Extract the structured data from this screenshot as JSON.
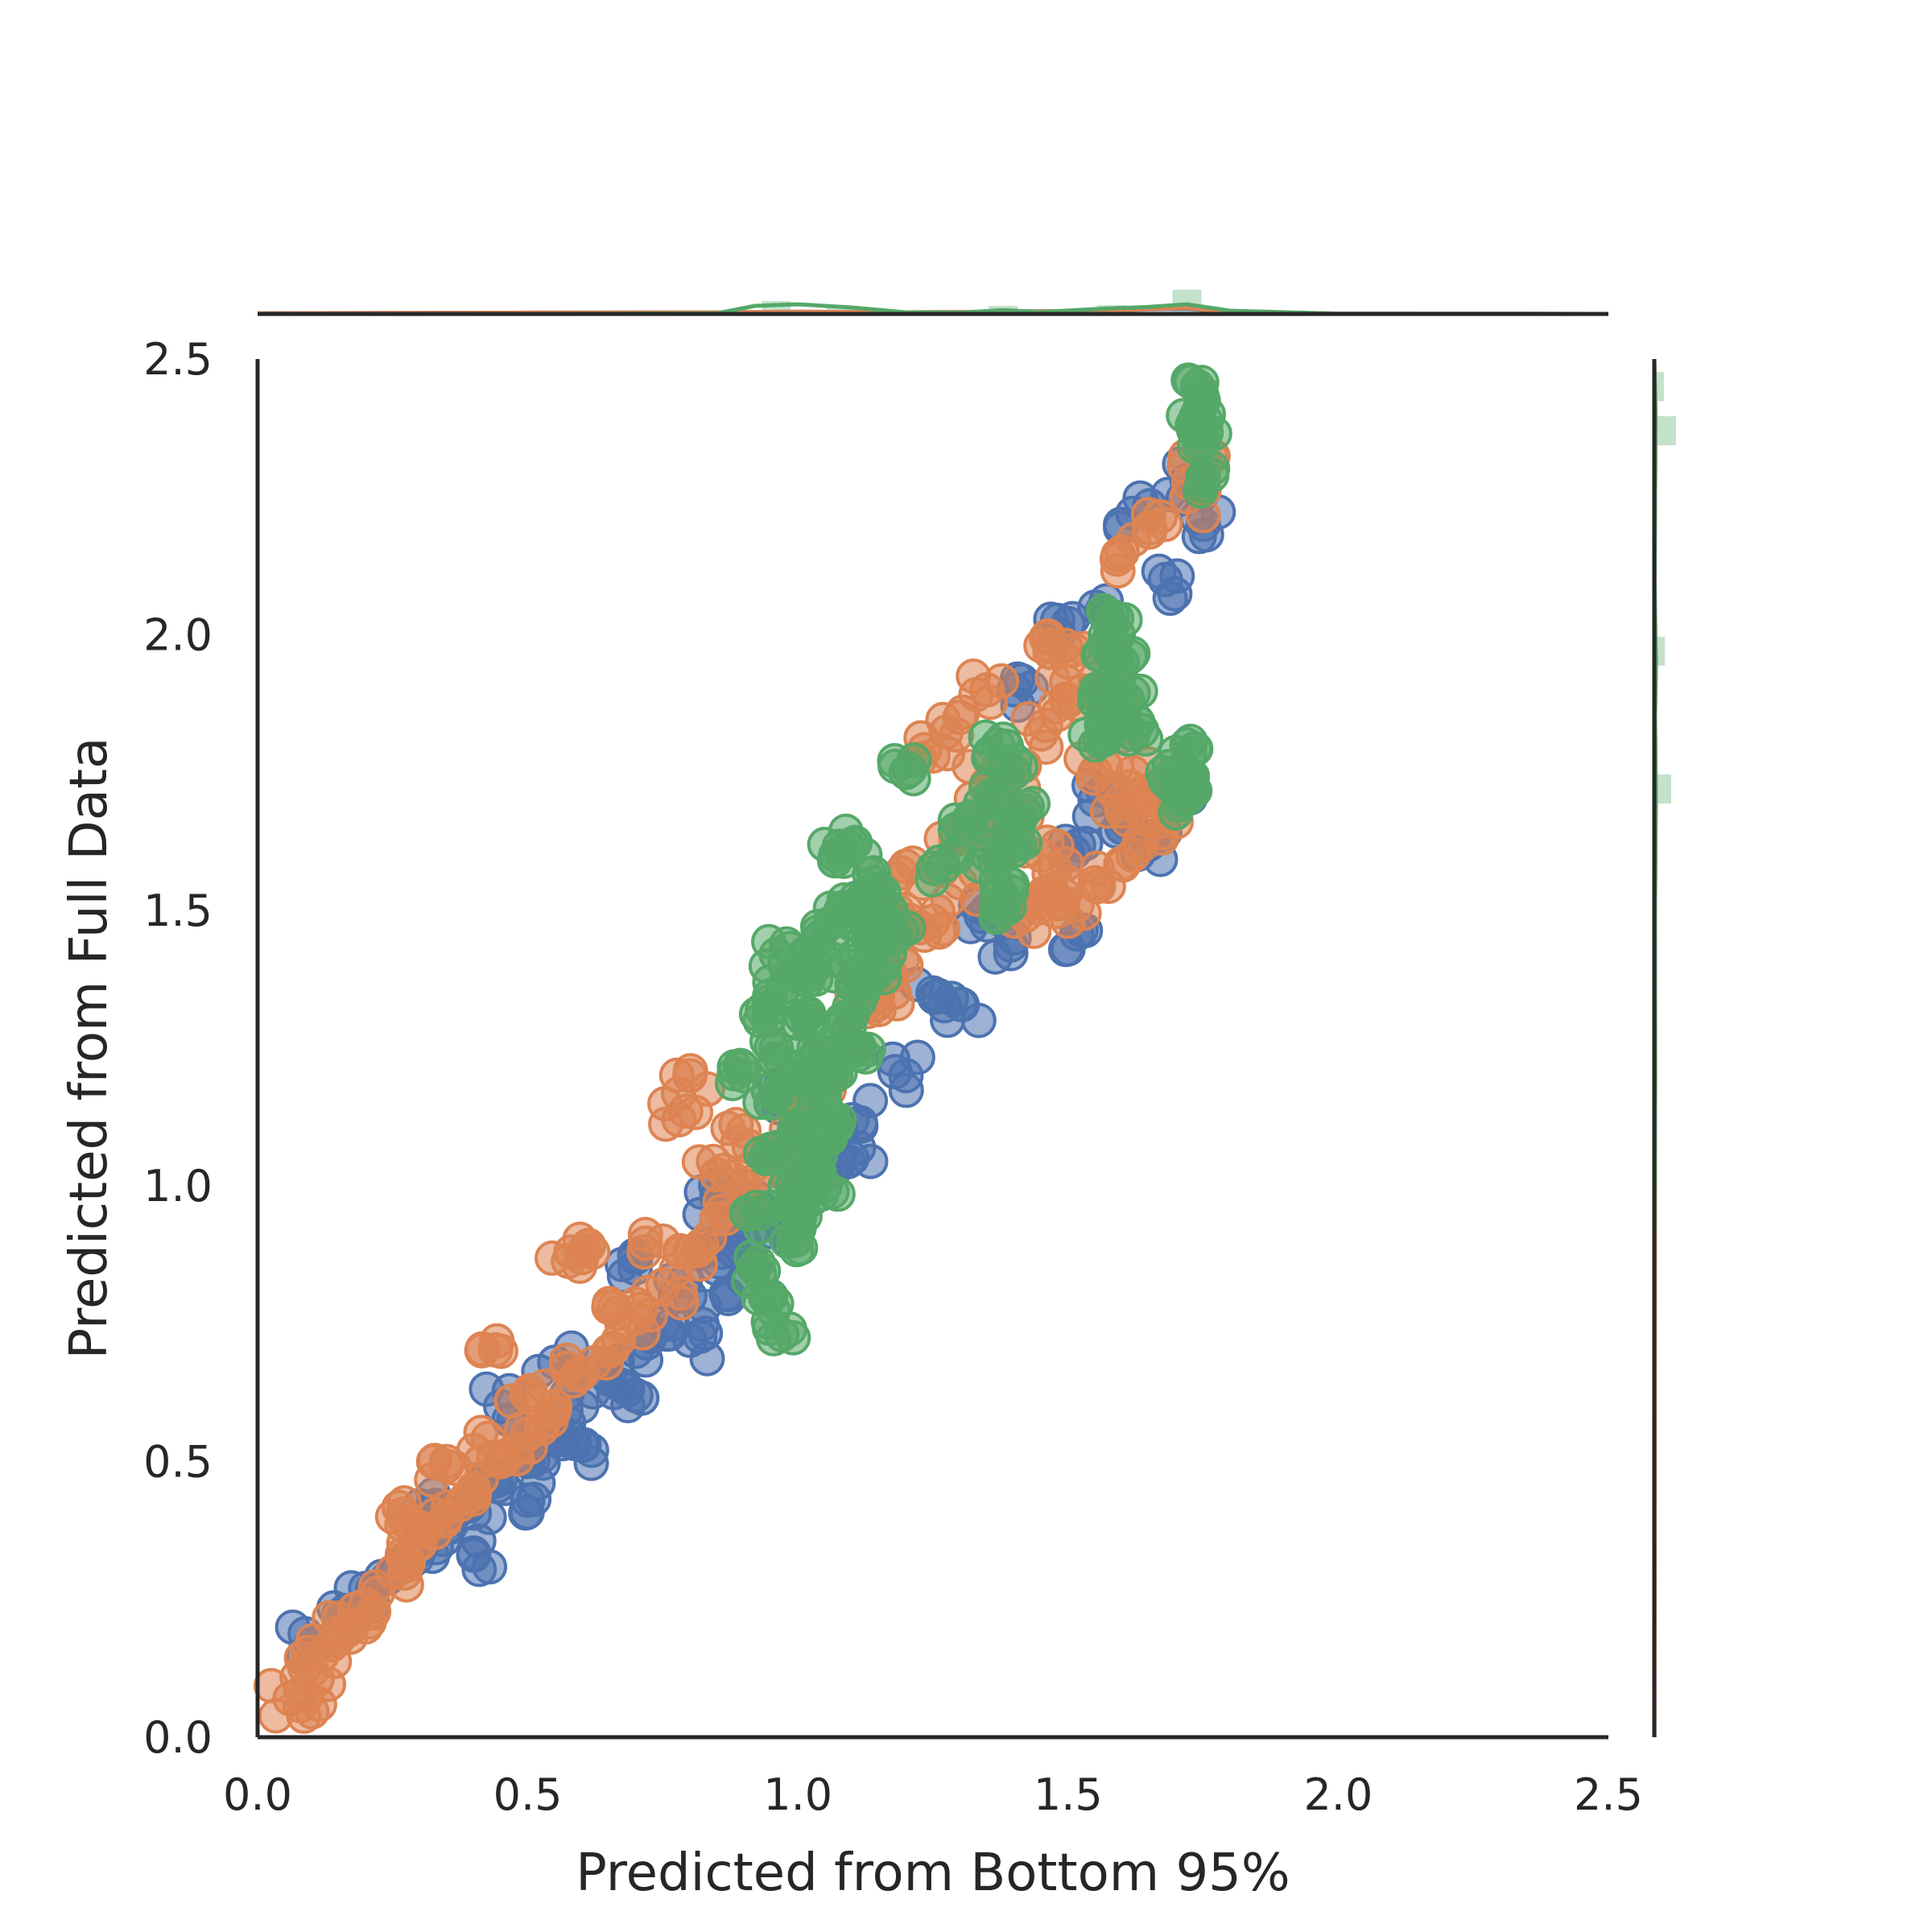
{
  "colors": {
    "blue": "#4c72b0",
    "orange": "#dd8452",
    "green": "#55a868",
    "axis": "#262626",
    "background": "#ffffff"
  },
  "chart_data": {
    "type": "scatter",
    "title": "",
    "xlabel": "Predicted from Bottom 95%",
    "ylabel": "Predicted from Full Data",
    "xlim": [
      0.0,
      2.5
    ],
    "ylim": [
      0.0,
      2.5
    ],
    "xticks": [
      "0.0",
      "0.5",
      "1.0",
      "1.5",
      "2.0",
      "2.5"
    ],
    "yticks": [
      "0.0",
      "0.5",
      "1.0",
      "1.5",
      "2.0",
      "2.5"
    ],
    "grid": false,
    "legend": "none",
    "marginal_distributions": "histogram + kde on top (x) and right (y)",
    "series": [
      {
        "color": "blue",
        "points": [
          [
            0.1,
            0.17
          ],
          [
            0.15,
            0.22
          ],
          [
            0.2,
            0.27
          ],
          [
            0.25,
            0.3
          ],
          [
            0.3,
            0.34
          ],
          [
            0.35,
            0.38
          ],
          [
            0.4,
            0.43
          ],
          [
            0.45,
            0.47
          ],
          [
            0.5,
            0.5
          ],
          [
            0.55,
            0.55
          ],
          [
            0.6,
            0.6
          ],
          [
            0.65,
            0.65
          ],
          [
            0.7,
            0.7
          ],
          [
            0.75,
            0.75
          ],
          [
            0.8,
            0.8
          ],
          [
            0.85,
            0.85
          ],
          [
            0.9,
            0.9
          ],
          [
            0.95,
            0.95
          ],
          [
            1.0,
            1.0
          ],
          [
            1.05,
            1.05
          ],
          [
            1.1,
            1.12
          ],
          [
            0.4,
            0.33
          ],
          [
            0.5,
            0.43
          ],
          [
            0.6,
            0.53
          ],
          [
            0.7,
            0.62
          ],
          [
            0.8,
            0.72
          ],
          [
            0.9,
            0.83
          ],
          [
            1.0,
            0.93
          ],
          [
            1.1,
            1.05
          ],
          [
            1.2,
            1.2
          ],
          [
            1.3,
            1.33
          ],
          [
            1.4,
            1.45
          ],
          [
            1.5,
            1.6
          ],
          [
            1.6,
            1.65
          ],
          [
            1.5,
            1.43
          ],
          [
            1.55,
            1.7
          ],
          [
            1.65,
            1.62
          ],
          [
            1.7,
            1.72
          ],
          [
            1.75,
            2.2
          ],
          [
            1.72,
            2.28
          ],
          [
            1.62,
            2.22
          ],
          [
            1.68,
            2.1
          ],
          [
            1.4,
            1.9
          ],
          [
            1.5,
            2.02
          ],
          [
            1.55,
            2.05
          ],
          [
            0.3,
            0.42
          ],
          [
            0.45,
            0.6
          ],
          [
            0.55,
            0.68
          ],
          [
            0.7,
            0.87
          ],
          [
            0.85,
            0.98
          ],
          [
            0.95,
            1.15
          ],
          [
            1.25,
            1.35
          ],
          [
            1.35,
            1.5
          ]
        ]
      },
      {
        "color": "orange",
        "points": [
          [
            0.06,
            0.07
          ],
          [
            0.08,
            0.08
          ],
          [
            0.12,
            0.15
          ],
          [
            0.15,
            0.19
          ],
          [
            0.2,
            0.24
          ],
          [
            0.25,
            0.3
          ],
          [
            0.3,
            0.35
          ],
          [
            0.35,
            0.4
          ],
          [
            0.4,
            0.45
          ],
          [
            0.45,
            0.5
          ],
          [
            0.5,
            0.55
          ],
          [
            0.55,
            0.6
          ],
          [
            0.6,
            0.66
          ],
          [
            0.65,
            0.7
          ],
          [
            0.7,
            0.76
          ],
          [
            0.75,
            0.82
          ],
          [
            0.8,
            0.88
          ],
          [
            0.85,
            0.94
          ],
          [
            0.9,
            1.0
          ],
          [
            0.95,
            1.06
          ],
          [
            1.0,
            1.12
          ],
          [
            1.05,
            1.18
          ],
          [
            1.1,
            1.25
          ],
          [
            1.15,
            1.32
          ],
          [
            1.2,
            1.4
          ],
          [
            1.25,
            1.48
          ],
          [
            1.3,
            1.55
          ],
          [
            1.35,
            1.65
          ],
          [
            1.4,
            1.75
          ],
          [
            1.45,
            1.82
          ],
          [
            1.5,
            1.88
          ],
          [
            1.55,
            1.92
          ],
          [
            1.6,
            1.85
          ],
          [
            1.62,
            1.75
          ],
          [
            1.65,
            1.7
          ],
          [
            1.7,
            1.66
          ],
          [
            1.62,
            1.6
          ],
          [
            1.55,
            1.55
          ],
          [
            1.5,
            1.48
          ],
          [
            1.45,
            1.52
          ],
          [
            1.75,
            2.32
          ],
          [
            1.72,
            2.25
          ],
          [
            1.68,
            2.2
          ],
          [
            1.6,
            2.15
          ],
          [
            1.3,
            1.85
          ],
          [
            1.25,
            1.78
          ],
          [
            1.3,
            1.65
          ],
          [
            1.35,
            1.73
          ],
          [
            1.2,
            1.58
          ],
          [
            0.8,
            1.2
          ],
          [
            0.78,
            1.12
          ],
          [
            0.6,
            0.87
          ],
          [
            0.58,
            0.88
          ],
          [
            0.45,
            0.7
          ],
          [
            0.35,
            0.5
          ],
          [
            0.25,
            0.4
          ],
          [
            0.3,
            0.38
          ],
          [
            0.4,
            0.52
          ],
          [
            0.5,
            0.62
          ],
          [
            0.65,
            0.78
          ],
          [
            0.75,
            0.9
          ],
          [
            0.85,
            1.02
          ],
          [
            0.9,
            1.1
          ],
          [
            1.1,
            1.35
          ],
          [
            1.15,
            1.45
          ],
          [
            1.2,
            1.5
          ],
          [
            1.4,
            1.68
          ],
          [
            1.45,
            1.6
          ],
          [
            1.55,
            1.75
          ],
          [
            1.6,
            1.68
          ],
          [
            1.5,
            1.95
          ],
          [
            1.45,
            1.98
          ],
          [
            1.35,
            1.9
          ],
          [
            1.42,
            1.49
          ],
          [
            1.5,
            1.55
          ],
          [
            0.2,
            0.2
          ],
          [
            0.1,
            0.12
          ]
        ]
      },
      {
        "color": "green",
        "points": [
          [
            0.92,
            0.85
          ],
          [
            0.93,
            0.95
          ],
          [
            0.94,
            1.05
          ],
          [
            0.95,
            1.15
          ],
          [
            0.96,
            1.25
          ],
          [
            0.97,
            1.35
          ],
          [
            0.98,
            0.9
          ],
          [
            0.99,
            1.0
          ],
          [
            1.0,
            1.1
          ],
          [
            1.01,
            1.2
          ],
          [
            1.02,
            1.3
          ],
          [
            1.03,
            1.4
          ],
          [
            1.04,
            1.45
          ],
          [
            1.05,
            1.0
          ],
          [
            1.06,
            1.1
          ],
          [
            1.07,
            1.2
          ],
          [
            1.08,
            1.3
          ],
          [
            1.09,
            1.4
          ],
          [
            1.1,
            1.5
          ],
          [
            1.11,
            1.25
          ],
          [
            1.12,
            1.35
          ],
          [
            1.13,
            1.45
          ],
          [
            1.14,
            1.55
          ],
          [
            1.15,
            1.48
          ],
          [
            1.16,
            1.4
          ],
          [
            0.95,
            0.8
          ],
          [
            0.97,
            0.73
          ],
          [
            1.0,
            0.95
          ],
          [
            1.02,
            1.05
          ],
          [
            1.05,
            1.15
          ],
          [
            1.07,
            1.6
          ],
          [
            1.1,
            1.62
          ],
          [
            1.2,
            1.75
          ],
          [
            1.3,
            1.65
          ],
          [
            1.27,
            1.58
          ],
          [
            1.35,
            1.6
          ],
          [
            1.36,
            1.7
          ],
          [
            1.37,
            1.8
          ],
          [
            1.38,
            1.5
          ],
          [
            1.39,
            1.55
          ],
          [
            1.4,
            1.75
          ],
          [
            1.41,
            1.62
          ],
          [
            1.42,
            1.68
          ],
          [
            1.55,
            1.8
          ],
          [
            1.56,
            1.9
          ],
          [
            1.57,
            1.98
          ],
          [
            1.58,
            1.85
          ],
          [
            1.59,
            2.03
          ],
          [
            1.6,
            1.95
          ],
          [
            1.61,
            1.88
          ],
          [
            1.62,
            1.82
          ],
          [
            1.7,
            1.75
          ],
          [
            1.71,
            1.7
          ],
          [
            1.72,
            1.8
          ],
          [
            1.73,
            1.72
          ],
          [
            1.74,
            2.4
          ],
          [
            1.75,
            2.35
          ],
          [
            1.74,
            2.45
          ],
          [
            1.73,
            2.38
          ],
          [
            1.75,
            2.28
          ],
          [
            0.9,
            1.2
          ],
          [
            0.93,
            1.3
          ],
          [
            0.96,
            1.42
          ],
          [
            1.0,
            1.38
          ],
          [
            1.03,
            1.25
          ],
          [
            1.08,
            1.5
          ],
          [
            1.12,
            1.52
          ],
          [
            1.18,
            1.45
          ]
        ]
      }
    ],
    "marginal_top_kde": {
      "x": [
        0.0,
        0.5,
        0.85,
        0.92,
        1.0,
        1.1,
        1.2,
        1.3,
        1.38,
        1.45,
        1.55,
        1.65,
        1.72,
        1.8,
        2.0,
        2.5
      ],
      "green": [
        0,
        0,
        0.02,
        0.25,
        0.3,
        0.2,
        0.05,
        0.04,
        0.12,
        0.06,
        0.15,
        0.22,
        0.3,
        0.1,
        0.01,
        0
      ],
      "orange": [
        0.02,
        0.04,
        0.05,
        0.06,
        0.07,
        0.06,
        0.05,
        0.06,
        0.08,
        0.08,
        0.1,
        0.15,
        0.18,
        0.06,
        0.01,
        0
      ],
      "blue": [
        0.02,
        0.04,
        0.05,
        0.06,
        0.07,
        0.06,
        0.05,
        0.06,
        0.07,
        0.08,
        0.1,
        0.14,
        0.16,
        0.06,
        0.01,
        0
      ]
    },
    "marginal_top_hist_green": [
      {
        "x": 0.96,
        "h": 0.32
      },
      {
        "x": 1.08,
        "h": 0.2
      },
      {
        "x": 1.38,
        "h": 0.2
      },
      {
        "x": 1.58,
        "h": 0.22
      },
      {
        "x": 1.72,
        "h": 0.6
      }
    ],
    "marginal_right_kde": {
      "y": [
        0.0,
        0.5,
        0.9,
        1.0,
        1.2,
        1.5,
        1.6,
        1.7,
        1.75,
        1.85,
        1.95,
        2.0,
        2.1,
        2.3,
        2.4,
        2.5
      ],
      "green": [
        0,
        0,
        0.01,
        0.05,
        0.08,
        0.06,
        0.1,
        0.12,
        0.11,
        0.07,
        0.15,
        0.1,
        0.03,
        0.08,
        0.1,
        0
      ],
      "orange": [
        0.02,
        0.05,
        0.06,
        0.06,
        0.05,
        0.06,
        0.1,
        0.14,
        0.12,
        0.06,
        0.05,
        0.04,
        0.03,
        0.08,
        0.12,
        0
      ]
    },
    "marginal_right_hist_green": [
      {
        "y": 1.72,
        "w": 0.35
      },
      {
        "y": 1.97,
        "w": 0.22
      },
      {
        "y": 2.37,
        "w": 0.45
      },
      {
        "y": 2.45,
        "w": 0.2
      }
    ]
  }
}
